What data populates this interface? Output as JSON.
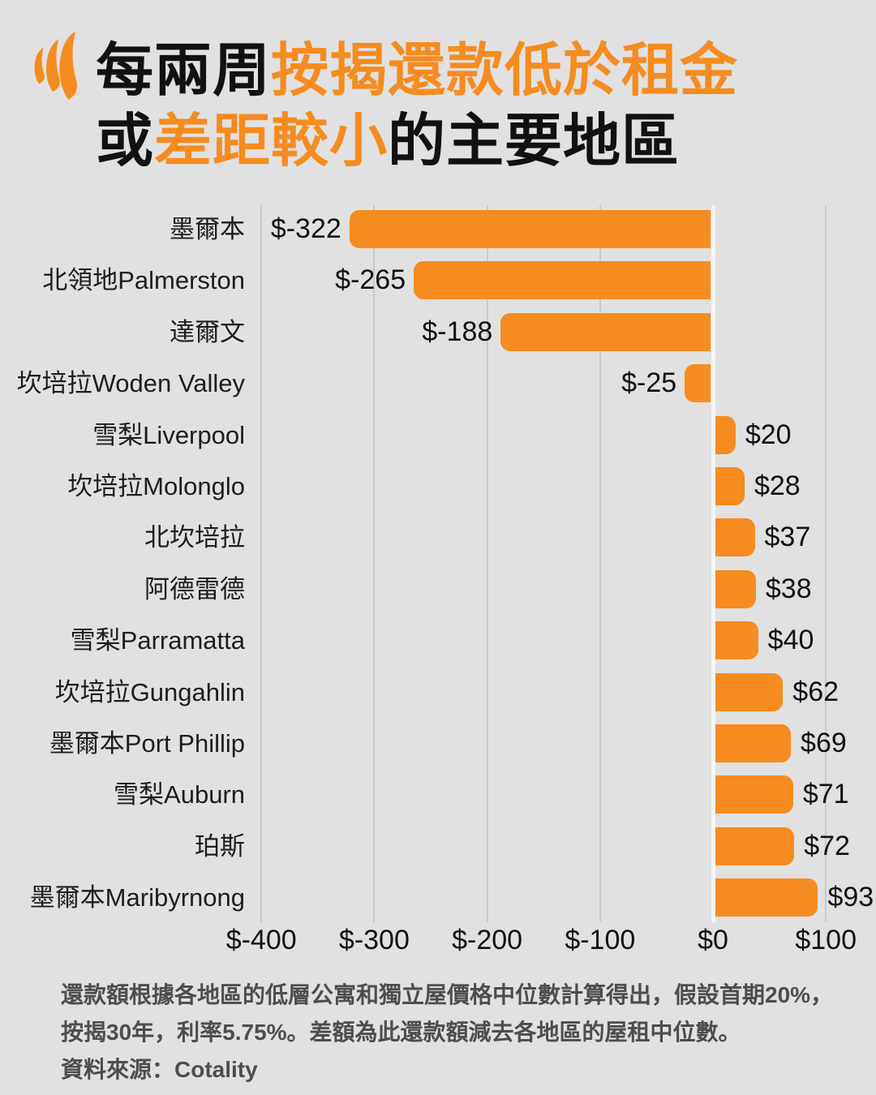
{
  "theme": {
    "background": "#e1e1e1",
    "accent": "#f68b1f",
    "ink": "#111111",
    "label": "#1d1d1d",
    "footnote": "#4d4d4d",
    "gridline": "#c9c9c9",
    "zeroline": "#f5f5f5"
  },
  "header": {
    "logo_name": "sbs-logo",
    "title": {
      "line1_black": "每兩周",
      "line1_orange": "按揭還款低於租金",
      "line2_black1": "或",
      "line2_orange": "差距較小",
      "line2_black2": "的主要地區"
    }
  },
  "chart_data": {
    "type": "bar",
    "orientation": "horizontal",
    "title": "每兩周按揭還款低於租金或差距較小的主要地區",
    "categories": [
      "墨爾本",
      "北領地Palmerston",
      "達爾文",
      "坎培拉Woden Valley",
      "雪梨Liverpool",
      "坎培拉Molonglo",
      "北坎培拉",
      "阿德雷德",
      "雪梨Parramatta",
      "坎培拉Gungahlin",
      "墨爾本Port Phillip",
      "雪梨Auburn",
      "珀斯",
      "墨爾本Maribyrnong"
    ],
    "values": [
      -322,
      -265,
      -188,
      -25,
      20,
      28,
      37,
      38,
      40,
      62,
      69,
      71,
      72,
      93
    ],
    "value_labels": [
      "$-322",
      "$-265",
      "$-188",
      "$-25",
      "$20",
      "$28",
      "$37",
      "$38",
      "$40",
      "$62",
      "$69",
      "$71",
      "$72",
      "$93"
    ],
    "x_ticks": [
      "$-400",
      "$-300",
      "$-200",
      "$-100",
      "$0",
      "$100"
    ],
    "x_tick_values": [
      -400,
      -300,
      -200,
      -100,
      0,
      100
    ],
    "xlim": [
      -400,
      100
    ],
    "grid": true,
    "bar_color": "#f68b1f",
    "legend_position": "none"
  },
  "footnote": {
    "line1": "還款額根據各地區的低層公寓和獨立屋價格中位數計算得出，假設首期20%，",
    "line2": "按揭30年，利率5.75%。差額為此還款額減去各地區的屋租中位數。",
    "line3": "資料來源：Cotality"
  }
}
